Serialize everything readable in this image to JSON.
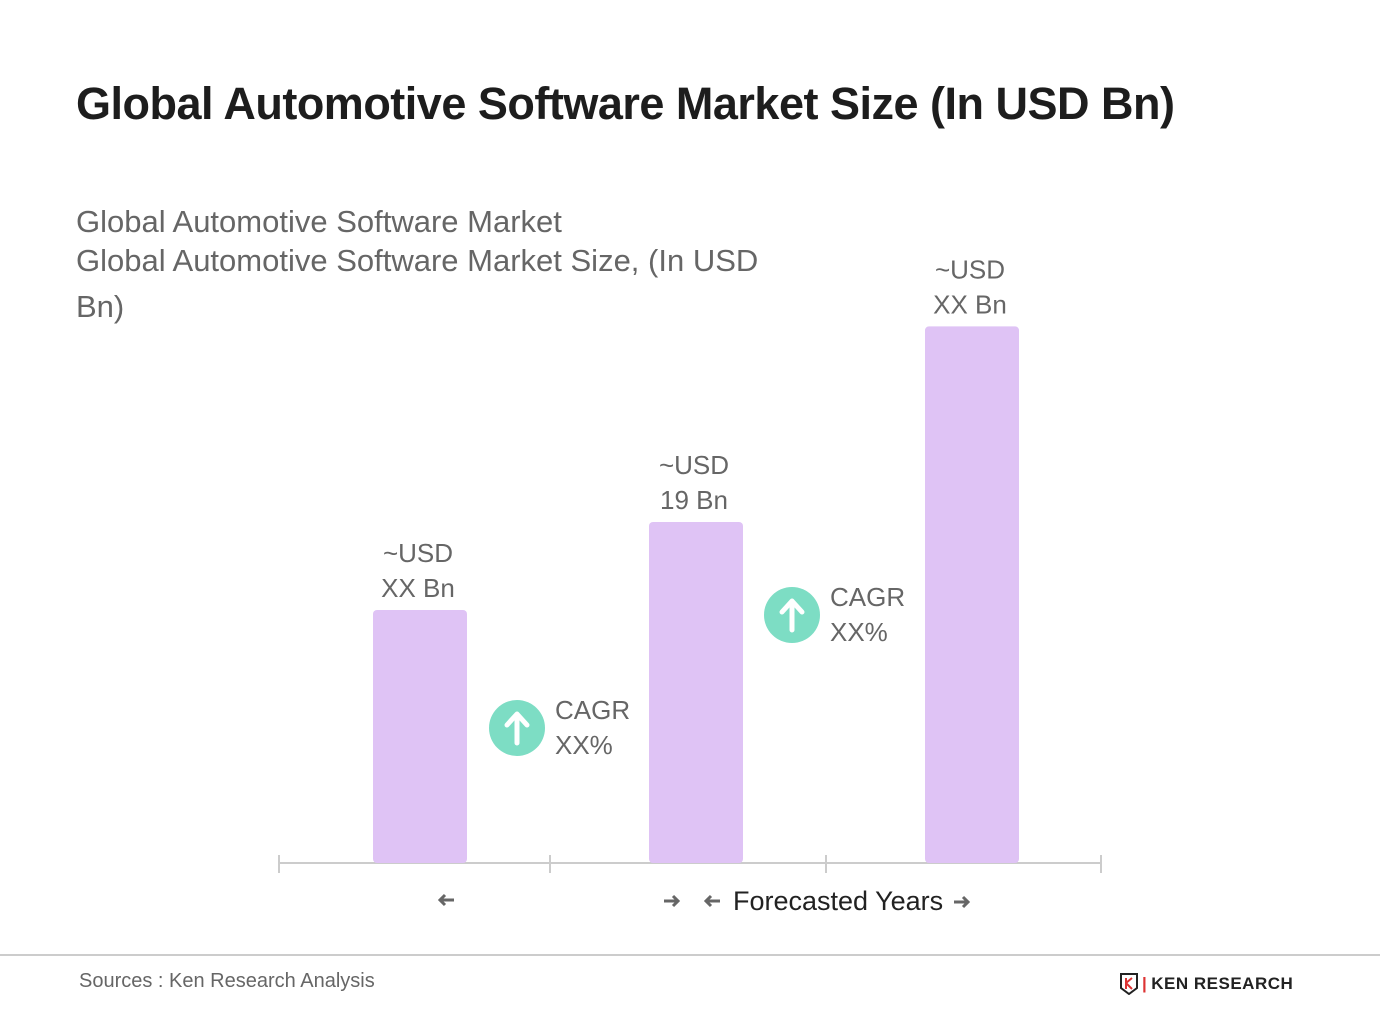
{
  "title": "Global Automotive Software Market Size (In USD Bn)",
  "subtitle_1": "Global Automotive Software Market",
  "subtitle_2": "Global Automotive Software Market Size, (In USD",
  "subtitle_3": "Bn)",
  "source": "Sources : Ken Research Analysis",
  "logo_text": "KEN RESEARCH",
  "colors": {
    "bar": "#dfc3f5",
    "cagr_icon": "#7dddc4",
    "axis": "#cccccc",
    "label": "#666666"
  },
  "chart_data": {
    "type": "bar",
    "categories": [
      "",
      "",
      ""
    ],
    "values": [
      14.1,
      19,
      29.9
    ],
    "data_labels": [
      [
        "~USD",
        "XX Bn"
      ],
      [
        "~USD",
        "19 Bn"
      ],
      [
        "~USD",
        "XX Bn"
      ]
    ],
    "annotations": [
      {
        "icon": "arrow-up-circle-icon",
        "lines": [
          "CAGR",
          "XX%"
        ]
      },
      {
        "icon": "arrow-up-circle-icon",
        "lines": [
          "CAGR",
          "XX%"
        ]
      }
    ],
    "xaxis_periods": [
      {
        "label": "",
        "arrows": "left"
      },
      {
        "label": "Forecasted Years",
        "arrows": "both"
      }
    ],
    "grid": false,
    "legend": "none"
  }
}
